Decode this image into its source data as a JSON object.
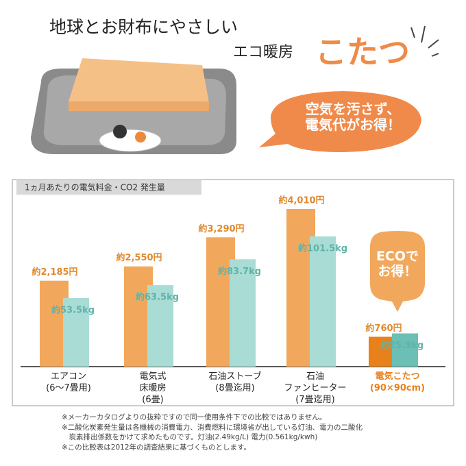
{
  "header": {
    "line1": "地球とお財布にやさしい",
    "line2": "エコ暖房",
    "accent": "こたつ",
    "bubble": "空気を汚さず、\n電気代がお得！"
  },
  "chart_data": {
    "type": "bar",
    "title": "1ヵ月あたりの電気料金・CO2 発生量",
    "categories": [
      "エアコン\n(6〜7畳用)",
      "電気式\n床暖房\n(6畳)",
      "石油ストーブ\n(8畳迄用)",
      "石油\nファンヒーター\n(7畳迄用)",
      "電気こたつ\n(90×90cm)"
    ],
    "series": [
      {
        "color": "#f2a85c",
        "label_color": "#e0892c",
        "values": [
          2185,
          2550,
          3290,
          4010,
          760
        ],
        "value_labels": [
          "約2,185円",
          "約2,550円",
          "約3,290円",
          "約4,010円",
          "約760円"
        ]
      },
      {
        "color": "#a9dcd5",
        "label_color": "#5fb3a9",
        "values": [
          53.5,
          63.5,
          83.7,
          101.5,
          25.9
        ],
        "value_labels": [
          "約53.5kg",
          "約63.5kg",
          "約83.7kg",
          "約101.5kg",
          "約25.9kg"
        ]
      }
    ],
    "highlight_index": 4,
    "highlight_colors": [
      "#e8811a",
      "#6cbfb4"
    ],
    "highlight_text_color": "#e8811a",
    "callout": "ECOで\nお得！"
  },
  "notes": [
    "※メーカーカタログよりの抜粋ですので同一使用条件下での比較ではありません。",
    "※二酸化炭素発生量は各機械の消費電力、消費燃料に環境省が出している灯油、電力の二酸化\n　炭素排出係数をかけて求めたものです。灯油(2.49kg/L) 電力(0.561kg/kwh)",
    "※この比較表は2012年の調査結果に基づくものとします。"
  ]
}
